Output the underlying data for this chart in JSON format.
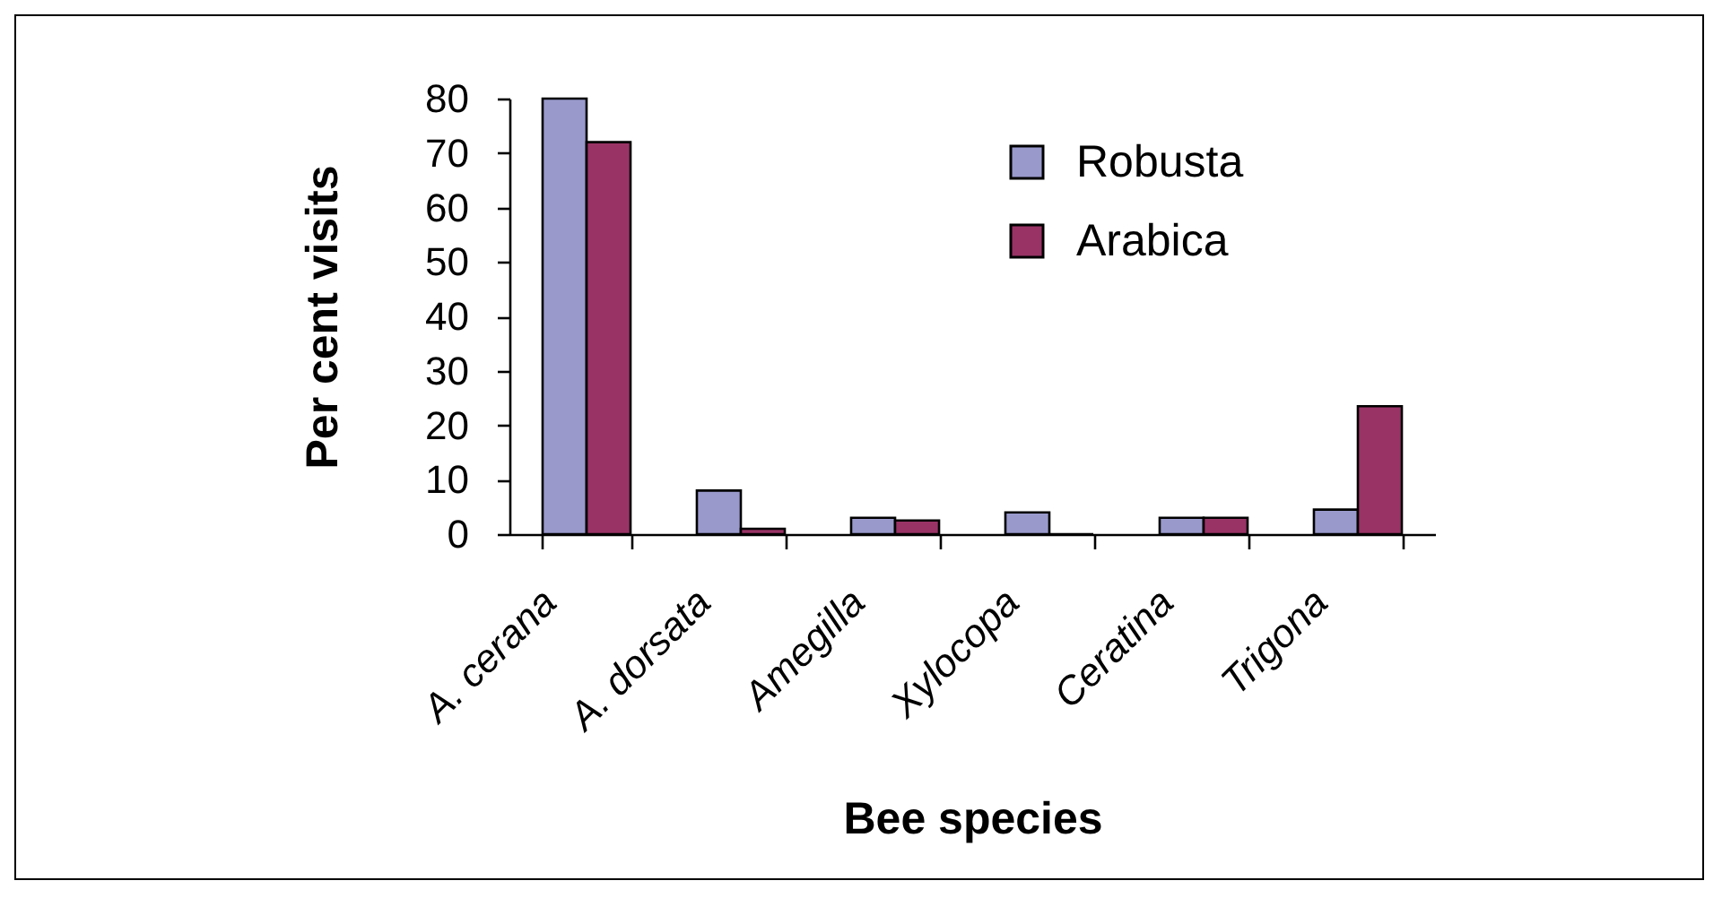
{
  "chart_data": {
    "type": "bar",
    "xlabel": "Bee species",
    "ylabel": "Per cent visits",
    "categories": [
      "A. cerana",
      "A. dorsata",
      "Amegilla",
      "Xylocopa",
      "Ceratina",
      "Trigona"
    ],
    "series": [
      {
        "name": "Robusta",
        "color": "#9999cc",
        "values": [
          80,
          8,
          3,
          4,
          3,
          4.5
        ]
      },
      {
        "name": "Arabica",
        "color": "#993366",
        "values": [
          72,
          1,
          2.5,
          0,
          3,
          23.5
        ]
      }
    ],
    "ylim": [
      0,
      80
    ],
    "yticks": [
      0,
      10,
      20,
      30,
      40,
      50,
      60,
      70,
      80
    ],
    "grid": false,
    "legend": "top right"
  }
}
